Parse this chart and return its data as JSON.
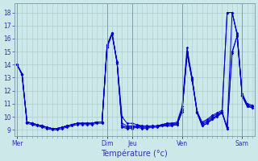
{
  "background_color": "#cce8e8",
  "grid_color": "#aacccc",
  "line_color": "#0000cc",
  "xlabel": "Température (°c)",
  "ylim": [
    8.5,
    18.7
  ],
  "yticks": [
    9,
    10,
    11,
    12,
    13,
    14,
    15,
    16,
    17,
    18
  ],
  "day_labels": [
    "Mer",
    "Dim",
    "Jeu",
    "Ven",
    "Sam"
  ],
  "day_x": [
    0,
    18,
    23,
    33,
    45
  ],
  "total_points": 48,
  "xlim": [
    -0.5,
    47.5
  ],
  "series": {
    "s1": [
      14.0,
      13.3,
      9.6,
      9.5,
      9.4,
      9.3,
      9.2,
      9.1,
      9.1,
      9.2,
      9.3,
      9.4,
      9.5,
      9.5,
      9.5,
      9.5,
      9.6,
      9.6,
      15.5,
      16.4,
      14.2,
      10.0,
      9.5,
      9.5,
      9.4,
      9.3,
      9.3,
      9.3,
      9.3,
      9.4,
      9.5,
      9.5,
      9.6,
      10.8,
      15.3,
      13.0,
      10.4,
      9.6,
      9.8,
      10.1,
      10.3,
      10.5,
      18.0,
      18.0,
      16.4,
      11.8,
      11.0,
      10.9
    ],
    "s2": [
      14.0,
      13.3,
      9.6,
      9.5,
      9.4,
      9.3,
      9.2,
      9.1,
      9.1,
      9.2,
      9.3,
      9.4,
      9.5,
      9.5,
      9.5,
      9.5,
      9.6,
      9.6,
      15.5,
      16.4,
      14.2,
      9.5,
      9.3,
      9.3,
      9.3,
      9.3,
      9.3,
      9.3,
      9.3,
      9.4,
      9.5,
      9.5,
      9.5,
      10.6,
      15.0,
      12.9,
      10.4,
      9.5,
      9.7,
      10.0,
      10.2,
      10.4,
      18.0,
      18.0,
      16.3,
      11.7,
      10.9,
      10.8
    ],
    "s3": [
      14.0,
      13.3,
      9.6,
      9.5,
      9.4,
      9.3,
      9.2,
      9.1,
      9.1,
      9.2,
      9.3,
      9.4,
      9.5,
      9.5,
      9.5,
      9.5,
      9.6,
      9.6,
      15.4,
      16.4,
      14.2,
      9.3,
      9.2,
      9.2,
      9.3,
      9.2,
      9.2,
      9.3,
      9.3,
      9.4,
      9.4,
      9.4,
      9.5,
      10.5,
      14.9,
      12.9,
      10.4,
      9.4,
      9.6,
      9.9,
      10.1,
      10.4,
      9.2,
      18.0,
      16.3,
      11.7,
      10.9,
      10.8
    ],
    "s4": [
      14.0,
      13.3,
      9.6,
      9.5,
      9.4,
      9.3,
      9.2,
      9.1,
      9.1,
      9.2,
      9.3,
      9.4,
      9.5,
      9.5,
      9.5,
      9.5,
      9.6,
      9.6,
      15.4,
      16.4,
      14.2,
      9.3,
      9.2,
      9.2,
      9.2,
      9.2,
      9.2,
      9.2,
      9.3,
      9.3,
      9.4,
      9.4,
      9.4,
      10.4,
      14.9,
      12.9,
      10.3,
      9.3,
      9.5,
      9.8,
      10.1,
      10.3,
      9.1,
      15.0,
      16.2,
      11.6,
      10.8,
      10.7
    ],
    "s5": [
      14.0,
      13.2,
      9.5,
      9.4,
      9.3,
      9.2,
      9.1,
      9.0,
      9.0,
      9.1,
      9.2,
      9.3,
      9.4,
      9.4,
      9.4,
      9.4,
      9.5,
      9.5,
      15.3,
      16.3,
      14.1,
      9.2,
      9.1,
      9.1,
      9.2,
      9.1,
      9.1,
      9.2,
      9.2,
      9.3,
      9.3,
      9.3,
      9.4,
      10.4,
      14.8,
      12.8,
      10.3,
      9.3,
      9.5,
      9.8,
      10.0,
      10.3,
      9.1,
      14.9,
      16.2,
      11.6,
      10.8,
      10.7
    ]
  }
}
